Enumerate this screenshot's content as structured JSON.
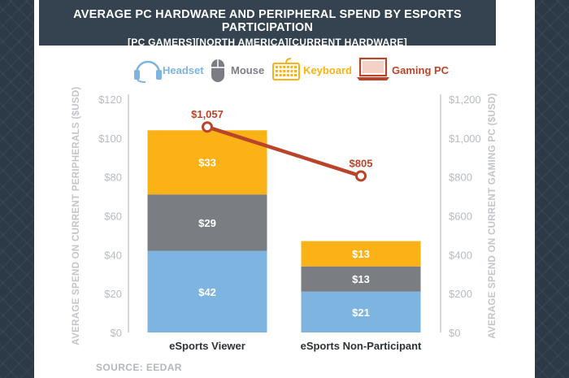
{
  "chart_data": {
    "type": "bar",
    "stacked": true,
    "title": "AVERAGE PC HARDWARE AND PERIPHERAL SPEND BY ESPORTS PARTICIPATION",
    "subtitle": "[PC GAMERS][NORTH AMERICA][CURRENT HARDWARE]",
    "categories": [
      "eSports Viewer",
      "eSports Non-Participant"
    ],
    "series": [
      {
        "name": "Headset",
        "values": [
          42,
          21
        ],
        "labels": [
          "$42",
          "$21"
        ],
        "color": "#7eb4e0",
        "icon": "headset-icon"
      },
      {
        "name": "Mouse",
        "values": [
          29,
          13
        ],
        "labels": [
          "$29",
          "$13"
        ],
        "color": "#7a7d82",
        "icon": "mouse-icon"
      },
      {
        "name": "Keyboard",
        "values": [
          33,
          13
        ],
        "labels": [
          "$33",
          "$13"
        ],
        "color": "#fbb216",
        "icon": "keyboard-icon"
      }
    ],
    "line_series": {
      "name": "Gaming PC",
      "values": [
        1057,
        805
      ],
      "labels": [
        "$1,057",
        "$805"
      ],
      "color": "#b9442a",
      "icon": "gaming-pc-icon",
      "axis": "right"
    },
    "left_axis": {
      "label": "AVERAGE SPEND ON CURRENT PERIPHERALS ($USD)",
      "range": [
        0,
        120
      ],
      "ticks": [
        0,
        20,
        40,
        60,
        80,
        100,
        120
      ],
      "tick_labels": [
        "$0",
        "$20",
        "$40",
        "$60",
        "$80",
        "$100",
        "$120"
      ]
    },
    "right_axis": {
      "label": "AVERAGE SPEND ON CURRENT GAMING PC ($USD)",
      "range": [
        0,
        1200
      ],
      "ticks": [
        0,
        200,
        400,
        600,
        800,
        1000,
        1200
      ],
      "tick_labels": [
        "$0",
        "$200",
        "$400",
        "$600",
        "$800",
        "$1,000",
        "$1,200"
      ]
    },
    "legend_placement": "top",
    "grid": false,
    "source": "SOURCE: EEDAR"
  }
}
